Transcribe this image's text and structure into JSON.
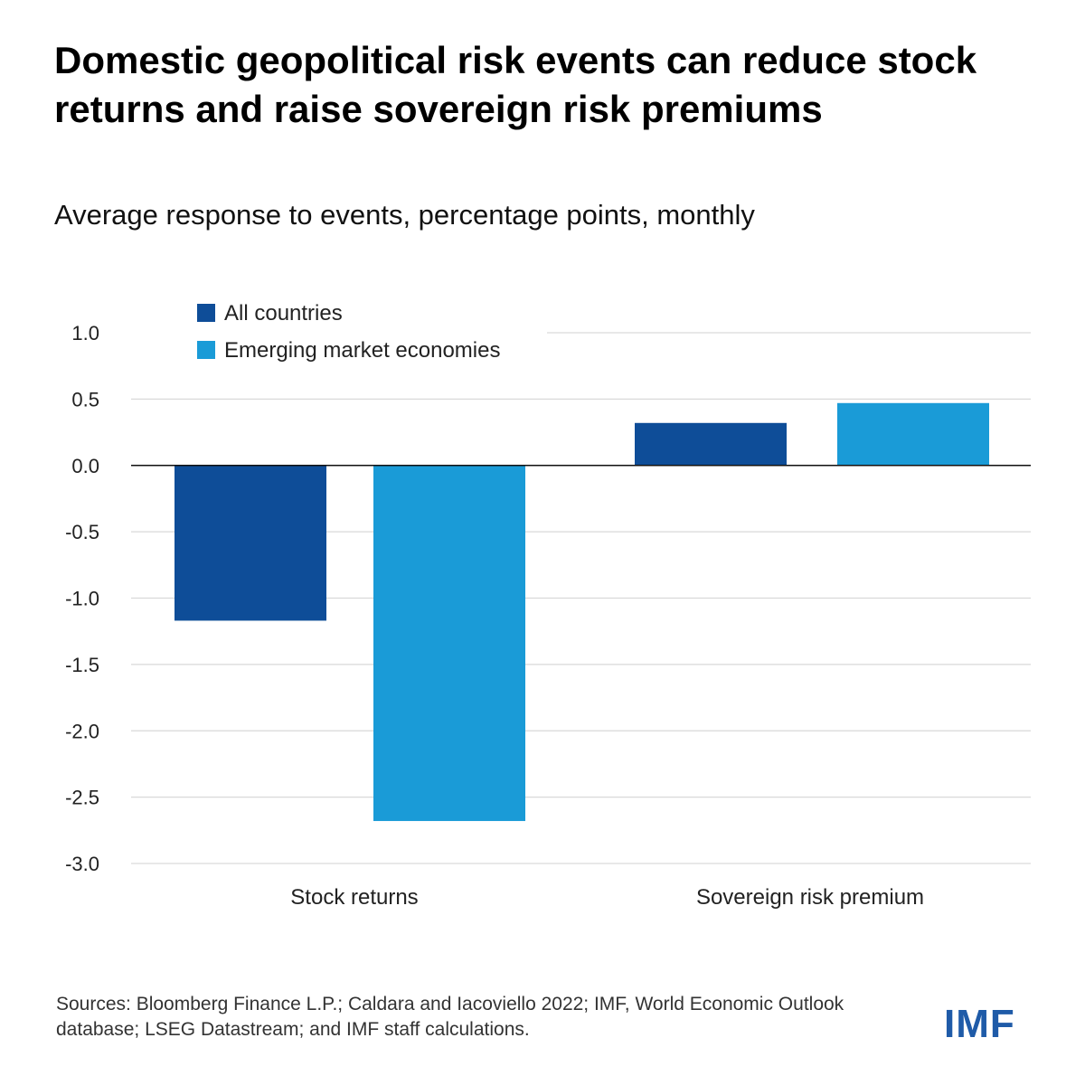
{
  "header": {
    "title": "Domestic geopolitical risk events can reduce stock returns and raise sovereign risk premiums",
    "subtitle": "Average response to events, percentage points, monthly"
  },
  "footer": {
    "source": "Sources: Bloomberg Finance L.P.; Caldara and Iacoviello 2022; IMF, World Economic Outlook database; LSEG Datastream; and IMF staff calculations.",
    "logo_text": "IMF"
  },
  "colors": {
    "all_countries": "#0e4d98",
    "emerging": "#1a9bd7",
    "logo": "#1f5ba8"
  },
  "chart_data": {
    "type": "bar",
    "title": "Domestic geopolitical risk events can reduce stock returns and raise sovereign risk premiums",
    "subtitle": "Average response to events, percentage points, monthly",
    "categories": [
      "Stock returns",
      "Sovereign risk premium"
    ],
    "series": [
      {
        "name": "All countries",
        "values": [
          -1.17,
          0.32
        ],
        "color": "#0e4d98"
      },
      {
        "name": "Emerging market economies",
        "values": [
          -2.68,
          0.47
        ],
        "color": "#1a9bd7"
      }
    ],
    "yticks": [
      1.0,
      0.5,
      0.0,
      -0.5,
      -1.0,
      -1.5,
      -2.0,
      -2.5,
      -3.0
    ],
    "ytick_labels": [
      "1.0",
      "0.5",
      "0.0",
      "-0.5",
      "-1.0",
      "-1.5",
      "-2.0",
      "-2.5",
      "-3.0"
    ],
    "ylim": [
      -3.0,
      1.0
    ],
    "xlabel": "",
    "ylabel": "",
    "grid": true,
    "legend_position": "top-left"
  }
}
